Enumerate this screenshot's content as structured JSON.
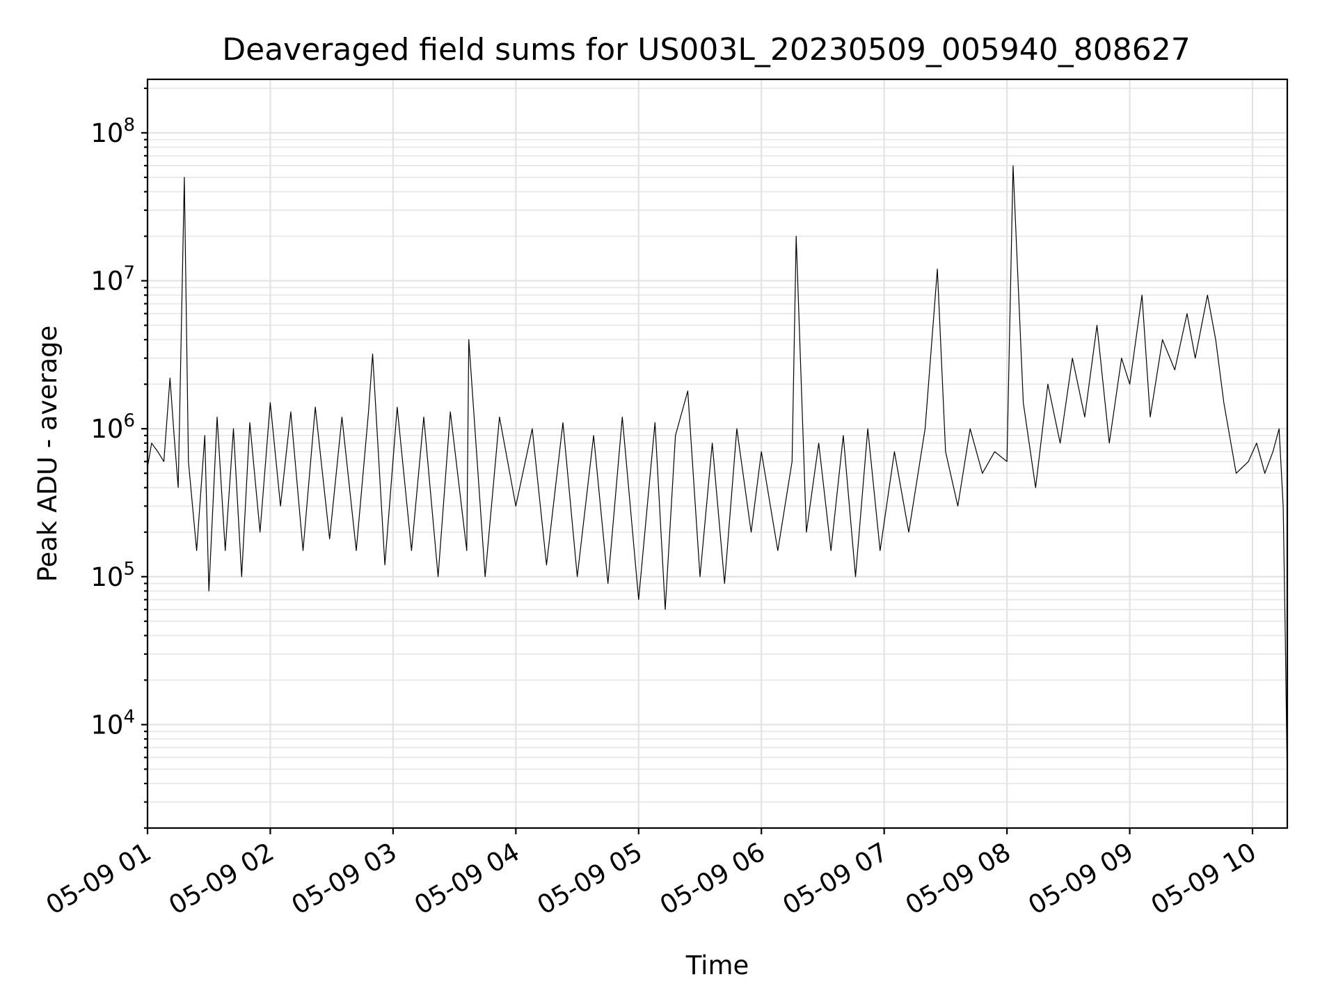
{
  "chart_data": {
    "type": "line",
    "title": "Deaveraged field sums for US003L_20230509_005940_808627",
    "xlabel": "Time",
    "ylabel": "Peak ADU - average",
    "yscale": "log",
    "grid": "on (major and minor)",
    "xlim": [
      "2023-05-09 01:00",
      "2023-05-09 10:17"
    ],
    "ylim": [
      2000,
      230000000
    ],
    "x_ticks": [
      "05-09 01",
      "05-09 02",
      "05-09 03",
      "05-09 04",
      "05-09 05",
      "05-09 06",
      "05-09 07",
      "05-09 08",
      "05-09 09",
      "05-09 10"
    ],
    "y_ticks": [
      {
        "base": "10",
        "exp": "4"
      },
      {
        "base": "10",
        "exp": "5"
      },
      {
        "base": "10",
        "exp": "6"
      },
      {
        "base": "10",
        "exp": "7"
      },
      {
        "base": "10",
        "exp": "8"
      }
    ],
    "series_color": "#000000",
    "series": [
      {
        "x": [
          "2023-05-09 01:00",
          "2023-05-09 01:02",
          "2023-05-09 01:05",
          "2023-05-09 01:08",
          "2023-05-09 01:11",
          "2023-05-09 01:13",
          "2023-05-09 01:15",
          "2023-05-09 01:18",
          "2023-05-09 01:20",
          "2023-05-09 01:24",
          "2023-05-09 01:28",
          "2023-05-09 01:30",
          "2023-05-09 01:34",
          "2023-05-09 01:38",
          "2023-05-09 01:42",
          "2023-05-09 01:46",
          "2023-05-09 01:50",
          "2023-05-09 01:55",
          "2023-05-09 02:00",
          "2023-05-09 02:05",
          "2023-05-09 02:10",
          "2023-05-09 02:16",
          "2023-05-09 02:22",
          "2023-05-09 02:29",
          "2023-05-09 02:35",
          "2023-05-09 02:42",
          "2023-05-09 02:48",
          "2023-05-09 02:50",
          "2023-05-09 02:56",
          "2023-05-09 03:02",
          "2023-05-09 03:09",
          "2023-05-09 03:15",
          "2023-05-09 03:22",
          "2023-05-09 03:28",
          "2023-05-09 03:36",
          "2023-05-09 03:37",
          "2023-05-09 03:45",
          "2023-05-09 03:52",
          "2023-05-09 04:00",
          "2023-05-09 04:08",
          "2023-05-09 04:15",
          "2023-05-09 04:23",
          "2023-05-09 04:30",
          "2023-05-09 04:38",
          "2023-05-09 04:45",
          "2023-05-09 04:52",
          "2023-05-09 05:00",
          "2023-05-09 05:08",
          "2023-05-09 05:13",
          "2023-05-09 05:18",
          "2023-05-09 05:24",
          "2023-05-09 05:30",
          "2023-05-09 05:36",
          "2023-05-09 05:42",
          "2023-05-09 05:48",
          "2023-05-09 05:55",
          "2023-05-09 06:00",
          "2023-05-09 06:08",
          "2023-05-09 06:15",
          "2023-05-09 06:17",
          "2023-05-09 06:22",
          "2023-05-09 06:28",
          "2023-05-09 06:34",
          "2023-05-09 06:40",
          "2023-05-09 06:46",
          "2023-05-09 06:52",
          "2023-05-09 06:58",
          "2023-05-09 07:05",
          "2023-05-09 07:12",
          "2023-05-09 07:20",
          "2023-05-09 07:26",
          "2023-05-09 07:30",
          "2023-05-09 07:36",
          "2023-05-09 07:42",
          "2023-05-09 07:48",
          "2023-05-09 07:54",
          "2023-05-09 08:00",
          "2023-05-09 08:03",
          "2023-05-09 08:08",
          "2023-05-09 08:14",
          "2023-05-09 08:20",
          "2023-05-09 08:26",
          "2023-05-09 08:32",
          "2023-05-09 08:38",
          "2023-05-09 08:44",
          "2023-05-09 08:50",
          "2023-05-09 08:56",
          "2023-05-09 09:00",
          "2023-05-09 09:06",
          "2023-05-09 09:10",
          "2023-05-09 09:16",
          "2023-05-09 09:22",
          "2023-05-09 09:28",
          "2023-05-09 09:32",
          "2023-05-09 09:38",
          "2023-05-09 09:42",
          "2023-05-09 09:46",
          "2023-05-09 09:52",
          "2023-05-09 09:58",
          "2023-05-09 10:02",
          "2023-05-09 10:06",
          "2023-05-09 10:10",
          "2023-05-09 10:13",
          "2023-05-09 10:15",
          "2023-05-09 10:16",
          "2023-05-09 10:17"
        ],
        "y": [
          550000,
          800000,
          700000,
          600000,
          2200000,
          900000,
          400000,
          50000000,
          600000,
          150000,
          900000,
          80000,
          1200000,
          150000,
          1000000,
          100000,
          1100000,
          200000,
          1500000,
          300000,
          1300000,
          150000,
          1400000,
          180000,
          1200000,
          150000,
          1300000,
          3200000,
          120000,
          1400000,
          150000,
          1200000,
          100000,
          1300000,
          150000,
          4000000,
          100000,
          1200000,
          300000,
          1000000,
          120000,
          1100000,
          100000,
          900000,
          90000,
          1200000,
          70000,
          1100000,
          60000,
          900000,
          1800000,
          100000,
          800000,
          90000,
          1000000,
          200000,
          700000,
          150000,
          600000,
          20000000,
          200000,
          800000,
          150000,
          900000,
          100000,
          1000000,
          150000,
          700000,
          200000,
          1000000,
          12000000,
          700000,
          300000,
          1000000,
          500000,
          700000,
          600000,
          60000000,
          1500000,
          400000,
          2000000,
          800000,
          3000000,
          1200000,
          5000000,
          800000,
          3000000,
          2000000,
          8000000,
          1200000,
          4000000,
          2500000,
          6000000,
          3000000,
          8000000,
          4000000,
          1500000,
          500000,
          600000,
          800000,
          500000,
          700000,
          1000000,
          300000,
          40000,
          4000
        ]
      }
    ]
  }
}
